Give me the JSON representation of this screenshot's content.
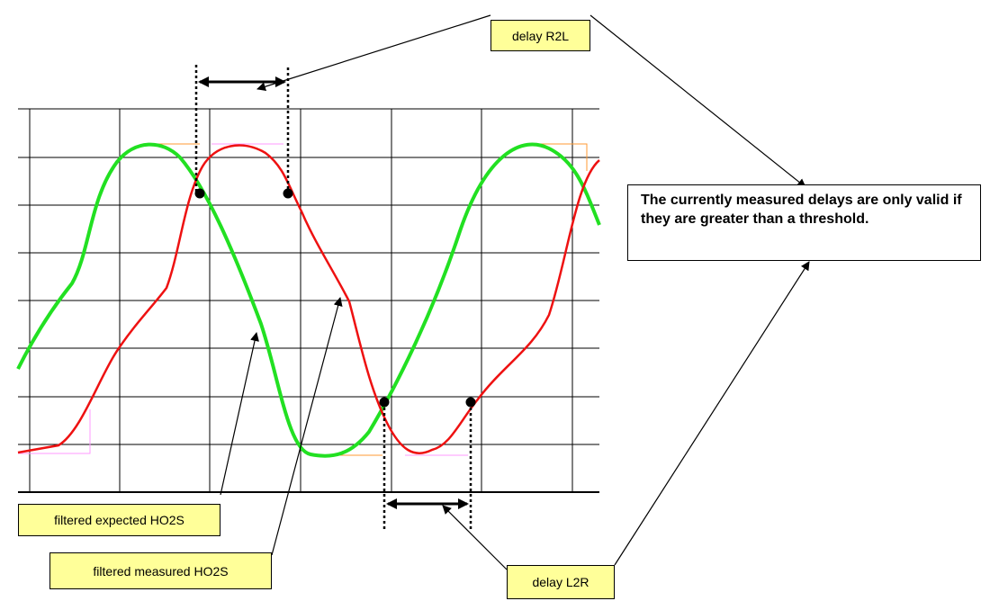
{
  "labels": {
    "delay_r2l": "delay R2L",
    "delay_l2r": "delay L2R",
    "expected": "filtered expected HO2S",
    "measured": "filtered measured HO2S"
  },
  "note": "The currently measured delays are only valid if they are greater than a threshold."
}
